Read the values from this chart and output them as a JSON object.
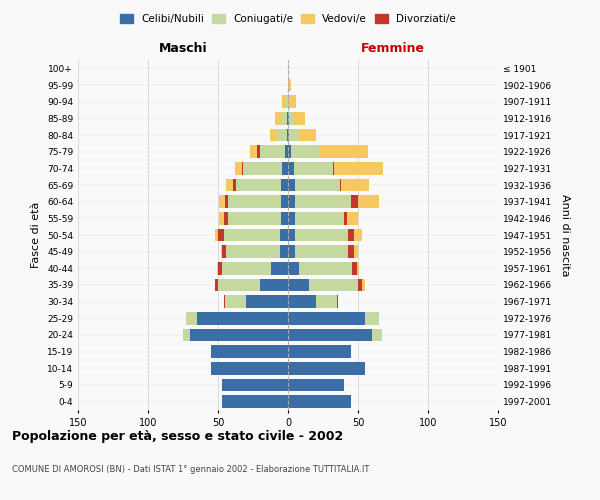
{
  "age_groups": [
    "0-4",
    "5-9",
    "10-14",
    "15-19",
    "20-24",
    "25-29",
    "30-34",
    "35-39",
    "40-44",
    "45-49",
    "50-54",
    "55-59",
    "60-64",
    "65-69",
    "70-74",
    "75-79",
    "80-84",
    "85-89",
    "90-94",
    "95-99",
    "100+"
  ],
  "birth_years": [
    "1997-2001",
    "1992-1996",
    "1987-1991",
    "1982-1986",
    "1977-1981",
    "1972-1976",
    "1967-1971",
    "1962-1966",
    "1957-1961",
    "1952-1956",
    "1947-1951",
    "1942-1946",
    "1937-1941",
    "1932-1936",
    "1927-1931",
    "1922-1926",
    "1917-1921",
    "1912-1916",
    "1907-1911",
    "1902-1906",
    "≤ 1901"
  ],
  "maschi": {
    "celibi": [
      47,
      47,
      55,
      55,
      70,
      65,
      30,
      20,
      12,
      6,
      6,
      5,
      5,
      5,
      4,
      2,
      1,
      1,
      0,
      0,
      0
    ],
    "coniugati": [
      0,
      0,
      0,
      0,
      5,
      8,
      15,
      30,
      35,
      38,
      40,
      38,
      38,
      32,
      28,
      18,
      7,
      4,
      2,
      0,
      0
    ],
    "vedovi": [
      0,
      0,
      0,
      0,
      0,
      0,
      0,
      0,
      1,
      1,
      2,
      3,
      4,
      5,
      5,
      5,
      5,
      4,
      2,
      0,
      0
    ],
    "divorziati": [
      0,
      0,
      0,
      0,
      0,
      0,
      1,
      2,
      3,
      3,
      4,
      3,
      2,
      2,
      1,
      2,
      0,
      0,
      0,
      0,
      0
    ]
  },
  "femmine": {
    "nubili": [
      45,
      40,
      55,
      45,
      60,
      55,
      20,
      15,
      8,
      5,
      5,
      5,
      5,
      5,
      4,
      2,
      1,
      1,
      0,
      0,
      0
    ],
    "coniugate": [
      0,
      0,
      0,
      0,
      7,
      10,
      15,
      35,
      38,
      38,
      38,
      35,
      40,
      32,
      28,
      20,
      7,
      3,
      1,
      0,
      0
    ],
    "vedove": [
      0,
      0,
      0,
      0,
      0,
      0,
      0,
      2,
      2,
      3,
      6,
      8,
      15,
      20,
      35,
      35,
      12,
      8,
      5,
      2,
      0
    ],
    "divorziate": [
      0,
      0,
      0,
      0,
      0,
      0,
      1,
      3,
      3,
      4,
      4,
      2,
      5,
      1,
      1,
      0,
      0,
      0,
      0,
      0,
      0
    ]
  },
  "colors": {
    "celibi": "#3a6ea5",
    "coniugati": "#c5d8a0",
    "vedovi": "#f5c860",
    "divorziati": "#c0392b"
  },
  "title": "Popolazione per età, sesso e stato civile - 2002",
  "subtitle": "COMUNE DI AMOROSI (BN) - Dati ISTAT 1° gennaio 2002 - Elaborazione TUTTITALIA.IT",
  "xlabel_left": "Maschi",
  "xlabel_right": "Femmine",
  "ylabel_left": "Fasce di età",
  "ylabel_right": "Anni di nascita",
  "xlim": 150,
  "legend_labels": [
    "Celibi/Nubili",
    "Coniugati/e",
    "Vedovi/e",
    "Divorziati/e"
  ],
  "background_color": "#f9f9f9"
}
